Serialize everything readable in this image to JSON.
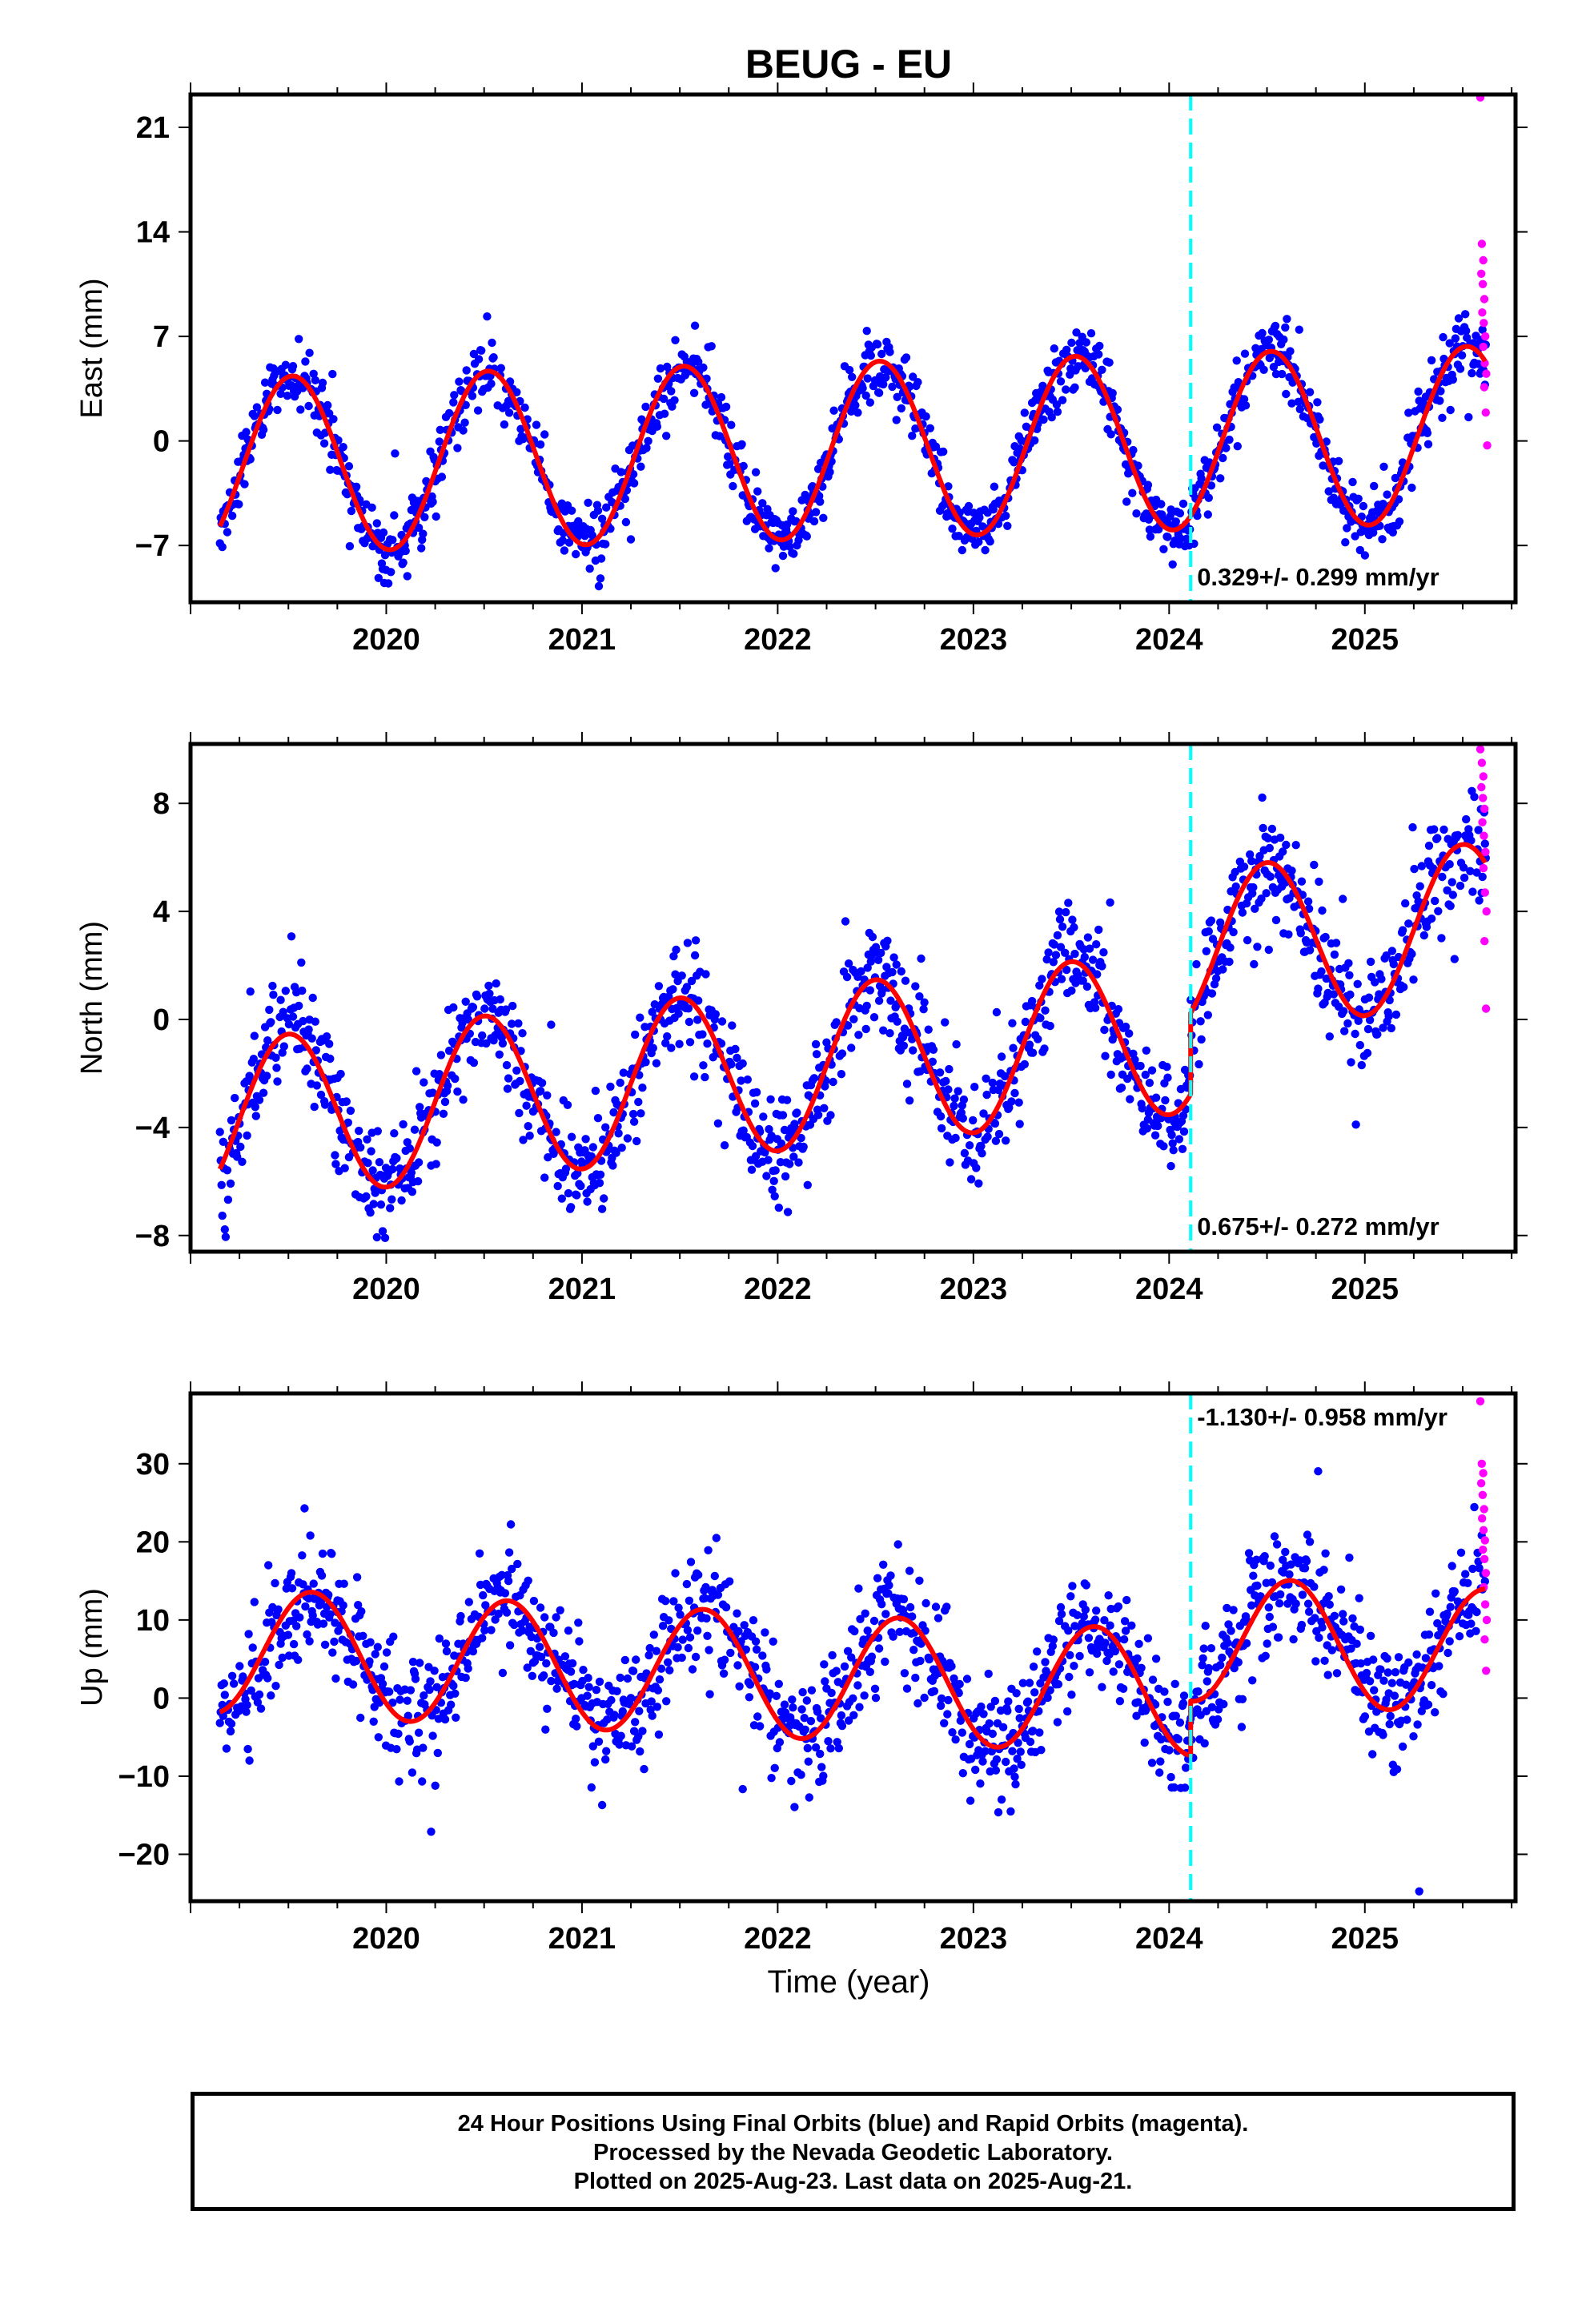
{
  "title": "BEUG - EU",
  "xlabel": "Time (year)",
  "footer": {
    "line1": "24 Hour Positions Using Final Orbits (blue) and Rapid Orbits (magenta).",
    "line2": "Processed by the Nevada Geodetic Laboratory.",
    "line3": "Plotted on 2025-Aug-23. Last data on 2025-Aug-21."
  },
  "colors": {
    "final": "#0000ff",
    "rapid": "#ff00ff",
    "model": "#ff0000",
    "step": "#00ffff"
  },
  "chart_data": [
    {
      "type": "scatter",
      "ylabel": "East (mm)",
      "rate_label": "0.329+/- 0.299 mm/yr",
      "xlim": [
        2019.0,
        2025.77
      ],
      "ylim": [
        -10.8,
        23.2
      ],
      "yticks": [
        -7,
        0,
        7,
        14,
        21
      ],
      "xticks": [
        2020,
        2021,
        2022,
        2023,
        2024,
        2025
      ],
      "step_epoch": 2024.11,
      "model": {
        "start": 2019.15,
        "end": 2025.62,
        "offset": -0.6,
        "trend": 0.33,
        "amp": 5.9,
        "phase_peak": 0.52,
        "jump": 0
      },
      "scatter_sigma": 1.1,
      "rapid_values": [
        23.0,
        13.2,
        12.1,
        11.2,
        10.5,
        9.5,
        8.6,
        7.9,
        7.0,
        6.3,
        5.2,
        4.5,
        3.6,
        1.9,
        -0.3
      ]
    },
    {
      "type": "scatter",
      "ylabel": "North (mm)",
      "rate_label": "0.675+/- 0.272 mm/yr",
      "xlim": [
        2019.0,
        2025.77
      ],
      "ylim": [
        -8.6,
        10.2
      ],
      "yticks": [
        -8,
        -4,
        0,
        4,
        8
      ],
      "xticks": [
        2020,
        2021,
        2022,
        2023,
        2024,
        2025
      ],
      "step_epoch": 2024.11,
      "model": {
        "start": 2019.15,
        "end": 2025.62,
        "offset": -1.6,
        "trend": 0.67,
        "amp": 3.0,
        "phase_peak": 0.5,
        "jump": 3.0
      },
      "scatter_sigma": 1.0,
      "rapid_values": [
        10.0,
        9.5,
        9.0,
        8.6,
        8.2,
        7.8,
        7.3,
        6.8,
        6.2,
        5.6,
        4.7,
        4.0,
        2.9,
        0.4
      ]
    },
    {
      "type": "scatter",
      "ylabel": "Up (mm)",
      "rate_label": "-1.130+/- 0.958 mm/yr",
      "xlim": [
        2019.0,
        2025.77
      ],
      "ylim": [
        -26,
        39
      ],
      "yticks": [
        -20,
        -10,
        0,
        10,
        20,
        30
      ],
      "xticks": [
        2020,
        2021,
        2022,
        2023,
        2024,
        2025
      ],
      "step_epoch": 2024.11,
      "model": {
        "start": 2019.15,
        "end": 2025.62,
        "offset": 2.5,
        "trend": -1.1,
        "amp": 8.0,
        "phase_peak": 0.62,
        "jump": 7.0
      },
      "scatter_sigma": 3.8,
      "rapid_values": [
        38.0,
        30.0,
        28.8,
        27.5,
        26.0,
        24.2,
        23.0,
        21.5,
        20.2,
        19.0,
        17.8,
        16.0,
        14.2,
        12.0,
        10.0,
        7.5,
        3.5
      ]
    }
  ]
}
